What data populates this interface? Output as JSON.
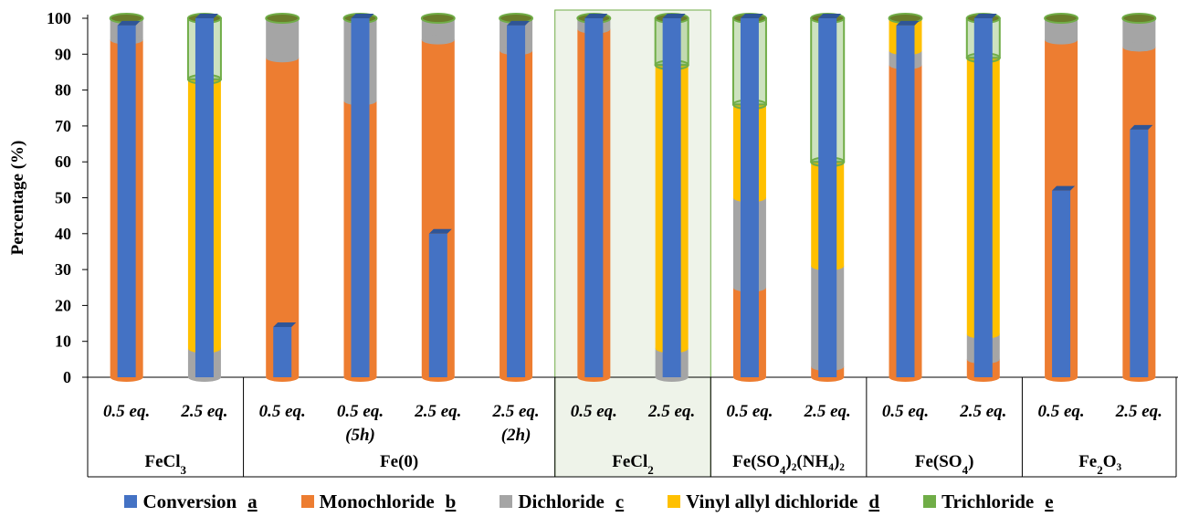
{
  "chart_data": {
    "type": "bar",
    "stacked": true,
    "ylabel": "Percentage (%)",
    "ylim": [
      0,
      100
    ],
    "yticks": [
      "0",
      "10",
      "20",
      "30",
      "40",
      "50",
      "60",
      "70",
      "80",
      "90",
      "100"
    ],
    "columns": [
      {
        "cat": "0.5 eq.",
        "sub": ""
      },
      {
        "cat": "2.5 eq.",
        "sub": ""
      },
      {
        "cat": "0.5 eq.",
        "sub": ""
      },
      {
        "cat": "0.5 eq.",
        "sub": "(5h)"
      },
      {
        "cat": "2.5 eq.",
        "sub": ""
      },
      {
        "cat": "2.5 eq.",
        "sub": "(2h)"
      },
      {
        "cat": "0.5 eq.",
        "sub": ""
      },
      {
        "cat": "2.5 eq.",
        "sub": ""
      },
      {
        "cat": "0.5 eq.",
        "sub": ""
      },
      {
        "cat": "2.5 eq.",
        "sub": ""
      },
      {
        "cat": "0.5 eq.",
        "sub": ""
      },
      {
        "cat": "2.5 eq.",
        "sub": ""
      },
      {
        "cat": "0.5 eq.",
        "sub": ""
      },
      {
        "cat": "2.5 eq.",
        "sub": ""
      }
    ],
    "groups": [
      {
        "base": "FeCl",
        "sub": "3",
        "rest": "",
        "start": 0,
        "end": 1
      },
      {
        "base": "Fe(0)",
        "sub": "",
        "rest": "",
        "start": 2,
        "end": 5
      },
      {
        "base": "FeCl",
        "sub": "2",
        "rest": "",
        "start": 6,
        "end": 7,
        "highlight": true
      },
      {
        "base": "Fe(SO",
        "sub": "4",
        "rest": ")₂(NH₄)₂",
        "start": 8,
        "end": 9
      },
      {
        "base": "Fe(SO",
        "sub": "4",
        "rest": ")",
        "start": 10,
        "end": 11
      },
      {
        "base": "Fe",
        "sub": "2",
        "rest": "O₃",
        "start": 12,
        "end": 13
      }
    ],
    "stack_series": [
      {
        "name": "Monochloride",
        "key": "b",
        "values": [
          94,
          0,
          89,
          77,
          94,
          91,
          97,
          0,
          25,
          3,
          87,
          5,
          94,
          92
        ]
      },
      {
        "name": "Dichloride",
        "key": "c",
        "values": [
          6,
          8,
          11,
          23,
          6,
          9,
          3,
          8,
          25,
          28,
          4,
          7,
          6,
          8
        ]
      },
      {
        "name": "Vinyl allyl dichloride",
        "key": "d",
        "values": [
          0,
          75,
          0,
          0,
          0,
          0,
          0,
          79,
          26,
          29,
          9,
          77,
          0,
          0
        ]
      },
      {
        "name": "Trichloride",
        "key": "e",
        "values": [
          0,
          17,
          0,
          0,
          0,
          0,
          0,
          13,
          24,
          40,
          0,
          11,
          0,
          0
        ]
      }
    ],
    "conversion": {
      "name": "Conversion",
      "key": "a",
      "values": [
        98,
        100,
        14,
        100,
        40,
        98,
        100,
        100,
        100,
        100,
        98,
        100,
        52,
        69
      ]
    },
    "legend": [
      {
        "name": "Conversion",
        "key": "a",
        "color": "#4472c4"
      },
      {
        "name": "Monochloride",
        "key": "b",
        "color": "#ed7d31"
      },
      {
        "name": "Dichloride",
        "key": "c",
        "color": "#a5a5a5"
      },
      {
        "name": "Vinyl allyl dichloride",
        "key": "d",
        "color": "#ffc000"
      },
      {
        "name": "Trichloride",
        "key": "e",
        "color": "#70ad47"
      }
    ],
    "legend_position": "bottom",
    "grid": false
  }
}
